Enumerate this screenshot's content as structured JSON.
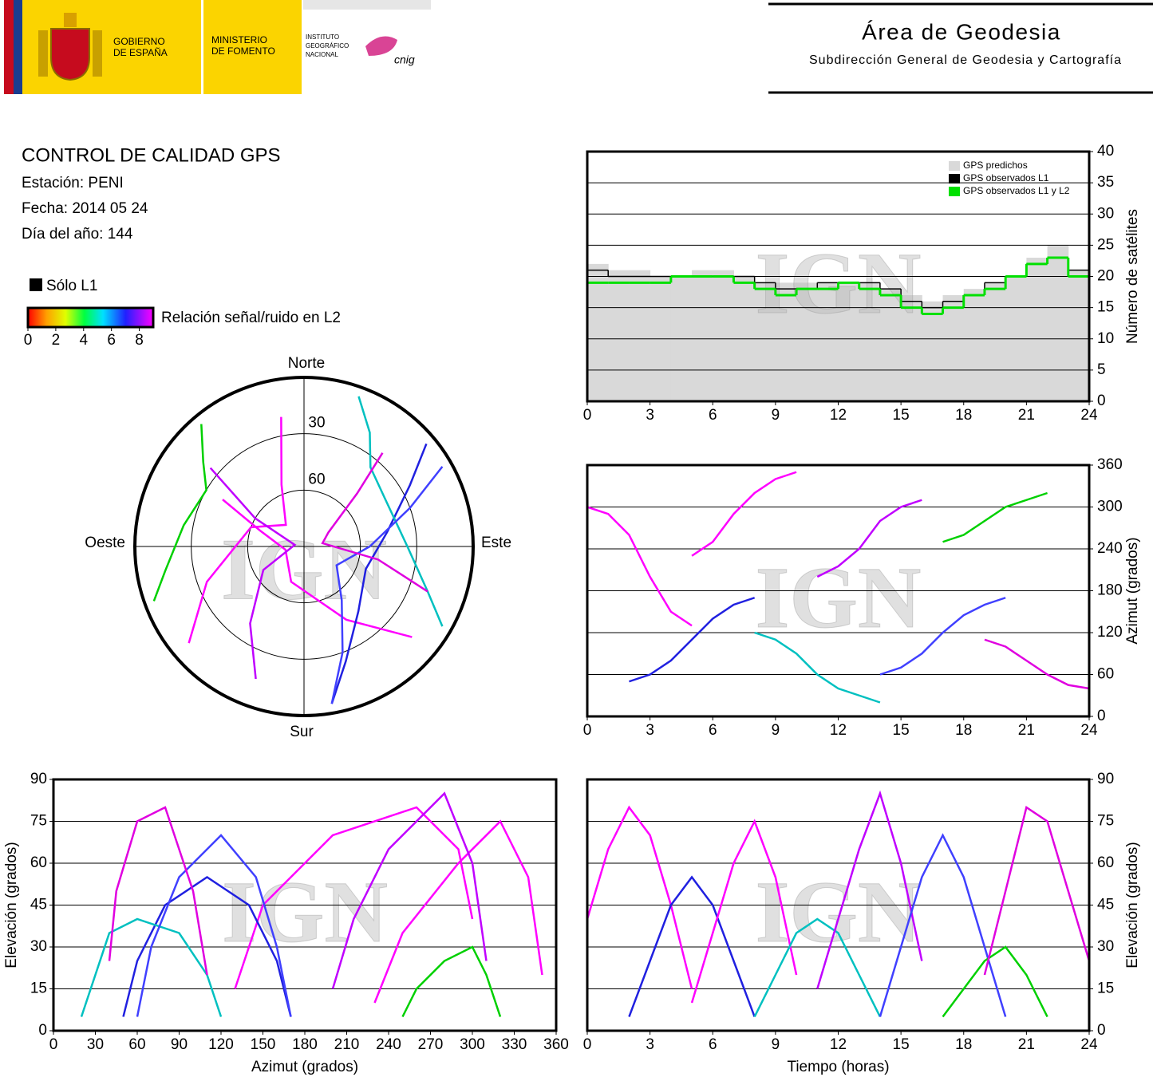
{
  "header": {
    "gobierno": [
      "GOBIERNO",
      "DE ESPAÑA"
    ],
    "ministerio": [
      "MINISTERIO",
      "DE FOMENTO"
    ],
    "instituto": [
      "INSTITUTO",
      "GEOGRÁFICO",
      "NACIONAL"
    ],
    "cnig": "cnig",
    "area": "Área de Geodesia",
    "subdireccion": "Subdirección General de Geodesia y Cartografía"
  },
  "info": {
    "title": "CONTROL DE CALIDAD GPS",
    "station": "Estación: PENI",
    "date": "Fecha: 2014 05 24",
    "doy": "Día del año: 144",
    "only_l1": "Sólo L1"
  },
  "colorbar": {
    "label": "Relación señal/ruido en L2",
    "range": [
      0,
      9
    ],
    "ticks": [
      0,
      2,
      4,
      6,
      8
    ]
  },
  "chart_data": [
    {
      "type": "step",
      "ylabel": "Número de satélites",
      "watermark": "IGN",
      "y_axis": "right",
      "grid": true,
      "legend": "upper right",
      "xlim": [
        0,
        24
      ],
      "xticks": [
        0,
        3,
        6,
        9,
        12,
        15,
        18,
        21,
        24
      ],
      "ylim": [
        0,
        40
      ],
      "yticks": [
        0,
        5,
        10,
        15,
        20,
        25,
        30,
        35,
        40
      ],
      "x": [
        0,
        1,
        2,
        3,
        4,
        5,
        6,
        7,
        8,
        9,
        10,
        11,
        12,
        13,
        14,
        15,
        16,
        17,
        18,
        19,
        20,
        21,
        22,
        23
      ],
      "series": [
        {
          "name": "GPS predichos",
          "color": "#d9d9d9",
          "values": [
            22,
            21,
            21,
            20,
            20,
            21,
            21,
            20,
            19,
            19,
            19,
            19,
            19,
            19,
            18,
            17,
            16,
            17,
            18,
            19,
            20,
            23,
            25,
            21
          ]
        },
        {
          "name": "GPS observados L1",
          "color": "#000000",
          "values": [
            21,
            20,
            20,
            20,
            20,
            20,
            20,
            20,
            19,
            18,
            18,
            19,
            19,
            19,
            18,
            16,
            15,
            16,
            17,
            19,
            20,
            22,
            23,
            21
          ]
        },
        {
          "name": "GPS observados L1 y L2",
          "color": "#00e000",
          "values": [
            19,
            19,
            19,
            19,
            20,
            20,
            20,
            19,
            18,
            17,
            18,
            18,
            19,
            18,
            17,
            15,
            14,
            15,
            17,
            18,
            20,
            22,
            23,
            20
          ]
        }
      ]
    },
    {
      "type": "line",
      "ylabel": "Azimut (grados)",
      "watermark": "IGN",
      "y_axis": "right",
      "grid": true,
      "xlim": [
        0,
        24
      ],
      "xticks": [
        0,
        3,
        6,
        9,
        12,
        15,
        18,
        21,
        24
      ],
      "ylim": [
        0,
        360
      ],
      "yticks": [
        0,
        60,
        120,
        180,
        240,
        300,
        360
      ],
      "series": [
        {
          "color": "#ff00ff",
          "x": [
            0,
            1,
            2,
            3,
            4,
            5
          ],
          "values": [
            300,
            290,
            260,
            200,
            150,
            130
          ]
        },
        {
          "color": "#2020e0",
          "x": [
            2,
            3,
            4,
            5,
            6,
            7,
            8
          ],
          "values": [
            50,
            60,
            80,
            110,
            140,
            160,
            170
          ]
        },
        {
          "color": "#ff00ff",
          "x": [
            5,
            6,
            7,
            8,
            9,
            10
          ],
          "values": [
            230,
            250,
            290,
            320,
            340,
            350
          ]
        },
        {
          "color": "#00c0c0",
          "x": [
            8,
            9,
            10,
            11,
            12,
            13,
            14
          ],
          "values": [
            120,
            110,
            90,
            60,
            40,
            30,
            20
          ]
        },
        {
          "color": "#c000ff",
          "x": [
            11,
            12,
            13,
            14,
            15,
            16
          ],
          "values": [
            200,
            215,
            240,
            280,
            300,
            310
          ]
        },
        {
          "color": "#4040ff",
          "x": [
            14,
            15,
            16,
            17,
            18,
            19,
            20
          ],
          "values": [
            60,
            70,
            90,
            120,
            145,
            160,
            170
          ]
        },
        {
          "color": "#00d000",
          "x": [
            17,
            18,
            19,
            20,
            21,
            22
          ],
          "values": [
            250,
            260,
            280,
            300,
            310,
            320
          ]
        },
        {
          "color": "#e000e0",
          "x": [
            19,
            20,
            21,
            22,
            23,
            24
          ],
          "values": [
            110,
            100,
            80,
            60,
            45,
            40
          ]
        }
      ]
    },
    {
      "type": "line",
      "xlabel": "Azimut (grados)",
      "ylabel": "Elevación (grados)",
      "watermark": "IGN",
      "y_axis": "left",
      "grid": true,
      "xlim": [
        0,
        360
      ],
      "xticks": [
        0,
        30,
        60,
        90,
        120,
        150,
        180,
        210,
        240,
        270,
        300,
        330,
        360
      ],
      "ylim": [
        0,
        90
      ],
      "yticks": [
        0,
        15,
        30,
        45,
        60,
        75,
        90
      ],
      "series": [
        {
          "color": "#ff00ff",
          "x": [
            300,
            290,
            260,
            200,
            150,
            130
          ],
          "values": [
            40,
            65,
            80,
            70,
            45,
            15
          ]
        },
        {
          "color": "#2020e0",
          "x": [
            50,
            60,
            80,
            110,
            140,
            160,
            170
          ],
          "values": [
            5,
            25,
            45,
            55,
            45,
            25,
            5
          ]
        },
        {
          "color": "#ff00ff",
          "x": [
            230,
            250,
            290,
            320,
            340,
            350
          ],
          "values": [
            10,
            35,
            60,
            75,
            55,
            20
          ]
        },
        {
          "color": "#00c0c0",
          "x": [
            120,
            110,
            90,
            60,
            40,
            30,
            20
          ],
          "values": [
            5,
            20,
            35,
            40,
            35,
            20,
            5
          ]
        },
        {
          "color": "#c000ff",
          "x": [
            200,
            215,
            240,
            280,
            300,
            310
          ],
          "values": [
            15,
            40,
            65,
            85,
            60,
            25
          ]
        },
        {
          "color": "#4040ff",
          "x": [
            60,
            70,
            90,
            120,
            145,
            160,
            170
          ],
          "values": [
            5,
            30,
            55,
            70,
            55,
            30,
            5
          ]
        },
        {
          "color": "#00d000",
          "x": [
            250,
            260,
            280,
            300,
            310,
            320
          ],
          "values": [
            5,
            15,
            25,
            30,
            20,
            5
          ]
        },
        {
          "color": "#e000e0",
          "x": [
            110,
            100,
            80,
            60,
            45,
            40
          ],
          "values": [
            20,
            50,
            80,
            75,
            50,
            25
          ]
        }
      ]
    },
    {
      "type": "line",
      "xlabel": "Tiempo (horas)",
      "ylabel": "Elevación (grados)",
      "watermark": "IGN",
      "y_axis": "right",
      "grid": true,
      "xlim": [
        0,
        24
      ],
      "xticks": [
        0,
        3,
        6,
        9,
        12,
        15,
        18,
        21,
        24
      ],
      "ylim": [
        0,
        90
      ],
      "yticks": [
        0,
        15,
        30,
        45,
        60,
        75,
        90
      ],
      "series": [
        {
          "color": "#ff00ff",
          "x": [
            0,
            1,
            2,
            3,
            4,
            5
          ],
          "values": [
            40,
            65,
            80,
            70,
            45,
            15
          ]
        },
        {
          "color": "#2020e0",
          "x": [
            2,
            3,
            4,
            5,
            6,
            7,
            8
          ],
          "values": [
            5,
            25,
            45,
            55,
            45,
            25,
            5
          ]
        },
        {
          "color": "#ff00ff",
          "x": [
            5,
            6,
            7,
            8,
            9,
            10
          ],
          "values": [
            10,
            35,
            60,
            75,
            55,
            20
          ]
        },
        {
          "color": "#00c0c0",
          "x": [
            8,
            9,
            10,
            11,
            12,
            13,
            14
          ],
          "values": [
            5,
            20,
            35,
            40,
            35,
            20,
            5
          ]
        },
        {
          "color": "#c000ff",
          "x": [
            11,
            12,
            13,
            14,
            15,
            16
          ],
          "values": [
            15,
            40,
            65,
            85,
            60,
            25
          ]
        },
        {
          "color": "#4040ff",
          "x": [
            14,
            15,
            16,
            17,
            18,
            19,
            20
          ],
          "values": [
            5,
            30,
            55,
            70,
            55,
            30,
            5
          ]
        },
        {
          "color": "#00d000",
          "x": [
            17,
            18,
            19,
            20,
            21,
            22
          ],
          "values": [
            5,
            15,
            25,
            30,
            20,
            5
          ]
        },
        {
          "color": "#e000e0",
          "x": [
            19,
            20,
            21,
            22,
            23,
            24
          ],
          "values": [
            20,
            50,
            80,
            75,
            50,
            25
          ]
        }
      ]
    },
    {
      "type": "polar",
      "watermark": "IGN",
      "directions": [
        "Norte",
        "Este",
        "Sur",
        "Oeste"
      ],
      "rlim": [
        90,
        0
      ],
      "rticks": [
        30,
        60
      ],
      "series": [
        {
          "color": "#ff00ff",
          "x": [
            300,
            290,
            260,
            200,
            150,
            130
          ],
          "values": [
            40,
            65,
            80,
            70,
            45,
            15
          ]
        },
        {
          "color": "#2020e0",
          "x": [
            50,
            60,
            80,
            110,
            140,
            160,
            170
          ],
          "values": [
            5,
            25,
            45,
            55,
            45,
            25,
            5
          ]
        },
        {
          "color": "#ff00ff",
          "x": [
            230,
            250,
            290,
            320,
            340,
            350
          ],
          "values": [
            10,
            35,
            60,
            75,
            55,
            20
          ]
        },
        {
          "color": "#00c0c0",
          "x": [
            120,
            110,
            90,
            60,
            40,
            30,
            20
          ],
          "values": [
            5,
            20,
            35,
            40,
            35,
            20,
            5
          ]
        },
        {
          "color": "#c000ff",
          "x": [
            200,
            215,
            240,
            280,
            300,
            310
          ],
          "values": [
            15,
            40,
            65,
            85,
            60,
            25
          ]
        },
        {
          "color": "#4040ff",
          "x": [
            60,
            70,
            90,
            120,
            145,
            160,
            170
          ],
          "values": [
            5,
            30,
            55,
            70,
            55,
            30,
            5
          ]
        },
        {
          "color": "#00d000",
          "x": [
            250,
            260,
            280,
            300,
            310,
            320
          ],
          "values": [
            5,
            15,
            25,
            30,
            20,
            5
          ]
        },
        {
          "color": "#e000e0",
          "x": [
            110,
            100,
            80,
            60,
            45,
            40
          ],
          "values": [
            20,
            50,
            80,
            75,
            50,
            25
          ]
        }
      ]
    }
  ]
}
